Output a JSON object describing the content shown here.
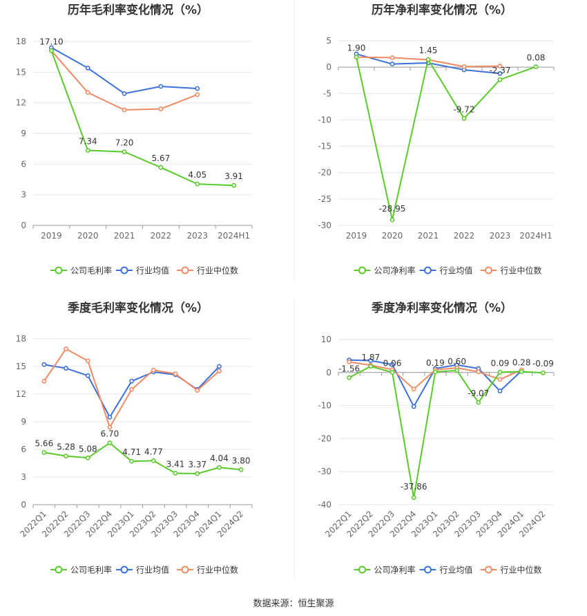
{
  "colors": {
    "company": "#5ac92a",
    "industry_avg": "#3b6fdc",
    "industry_median": "#f08a62",
    "grid": "#e6e6e6",
    "axis": "#999999",
    "text": "#666666",
    "title": "#333333"
  },
  "legend_labels": {
    "gross": [
      "公司毛利率",
      "行业均值",
      "行业中位数"
    ],
    "net": [
      "公司净利率",
      "行业均值",
      "行业中位数"
    ]
  },
  "source": "数据来源：恒生聚源",
  "chart_data": [
    {
      "id": "annual-gross",
      "type": "line",
      "title": "历年毛利率变化情况（%）",
      "categories": [
        "2019",
        "2020",
        "2021",
        "2022",
        "2023",
        "2024H1"
      ],
      "ylim": [
        0,
        18
      ],
      "yticks": [
        0,
        3,
        6,
        9,
        12,
        15,
        18
      ],
      "tick_rotation": 0,
      "series": [
        {
          "name": "公司毛利率",
          "role": "company",
          "values": [
            17.1,
            7.34,
            7.2,
            5.67,
            4.05,
            3.91
          ],
          "labels": [
            "17.10",
            "7.34",
            "7.20",
            "5.67",
            "4.05",
            "3.91"
          ]
        },
        {
          "name": "行业均值",
          "role": "industry_avg",
          "values": [
            17.4,
            15.4,
            12.9,
            13.6,
            13.4,
            null
          ]
        },
        {
          "name": "行业中位数",
          "role": "industry_median",
          "values": [
            17.1,
            13.0,
            11.3,
            11.4,
            12.8,
            null
          ]
        }
      ]
    },
    {
      "id": "annual-net",
      "type": "line",
      "title": "历年净利率变化情况（%）",
      "categories": [
        "2019",
        "2020",
        "2021",
        "2022",
        "2023",
        "2024H1"
      ],
      "ylim": [
        -30,
        5
      ],
      "yticks": [
        -30,
        -25,
        -20,
        -15,
        -10,
        -5,
        0,
        5
      ],
      "tick_rotation": 0,
      "series": [
        {
          "name": "公司净利率",
          "role": "company",
          "values": [
            1.9,
            -28.95,
            1.45,
            -9.72,
            -2.37,
            0.08
          ],
          "labels": [
            "1.90",
            "-28.95",
            "1.45",
            "-9.72",
            "-2.37",
            "0.08"
          ]
        },
        {
          "name": "行业均值",
          "role": "industry_avg",
          "values": [
            2.5,
            0.6,
            0.8,
            -0.5,
            -1.2,
            null
          ]
        },
        {
          "name": "行业中位数",
          "role": "industry_median",
          "values": [
            1.9,
            1.8,
            1.4,
            0.1,
            0.2,
            null
          ]
        }
      ]
    },
    {
      "id": "quarterly-gross",
      "type": "line",
      "title": "季度毛利率变化情况（%）",
      "categories": [
        "2022Q1",
        "2022Q2",
        "2022Q3",
        "2022Q4",
        "2023Q1",
        "2023Q2",
        "2023Q3",
        "2023Q4",
        "2024Q1",
        "2024Q2"
      ],
      "ylim": [
        0,
        18
      ],
      "yticks": [
        0,
        3,
        6,
        9,
        12,
        15,
        18
      ],
      "tick_rotation": -45,
      "series": [
        {
          "name": "公司毛利率",
          "role": "company",
          "values": [
            5.66,
            5.28,
            5.08,
            6.7,
            4.71,
            4.77,
            3.41,
            3.37,
            4.04,
            3.8
          ],
          "labels": [
            "5.66",
            "5.28",
            "5.08",
            "6.70",
            "4.71",
            "4.77",
            "3.41",
            "3.37",
            "4.04",
            "3.80"
          ]
        },
        {
          "name": "行业均值",
          "role": "industry_avg",
          "values": [
            15.2,
            14.8,
            14.0,
            9.5,
            13.4,
            14.4,
            14.1,
            12.5,
            15.0,
            null
          ]
        },
        {
          "name": "行业中位数",
          "role": "industry_median",
          "values": [
            13.4,
            16.9,
            15.6,
            8.4,
            12.5,
            14.6,
            14.2,
            12.4,
            14.5,
            null
          ]
        }
      ]
    },
    {
      "id": "quarterly-net",
      "type": "line",
      "title": "季度净利率变化情况（%）",
      "categories": [
        "2022Q1",
        "2022Q2",
        "2022Q3",
        "2022Q4",
        "2023Q1",
        "2023Q2",
        "2023Q3",
        "2023Q4",
        "2024Q1",
        "2024Q2"
      ],
      "ylim": [
        -40,
        10
      ],
      "yticks": [
        -40,
        -30,
        -20,
        -10,
        0,
        10
      ],
      "tick_rotation": -45,
      "series": [
        {
          "name": "公司净利率",
          "role": "company",
          "values": [
            -1.56,
            1.87,
            0.06,
            -37.86,
            0.19,
            0.6,
            -9.07,
            0.09,
            0.28,
            -0.09
          ],
          "labels": [
            "-1.56",
            "1.87",
            "0.06",
            "-37.86",
            "0.19",
            "0.60",
            "-9.07",
            "0.09",
            "0.28",
            "-0.09"
          ],
          "label_order": [
            0,
            1,
            2,
            3,
            4,
            5,
            6,
            7,
            8,
            9
          ]
        },
        {
          "name": "行业均值",
          "role": "industry_avg",
          "values": [
            3.8,
            3.6,
            2.4,
            -10.3,
            1.2,
            2.3,
            1.2,
            -5.6,
            0.5,
            null
          ]
        },
        {
          "name": "行业中位数",
          "role": "industry_median",
          "values": [
            3.2,
            2.2,
            0.9,
            -5.0,
            0.8,
            1.4,
            0.2,
            -2.1,
            0.8,
            null
          ]
        }
      ]
    }
  ]
}
